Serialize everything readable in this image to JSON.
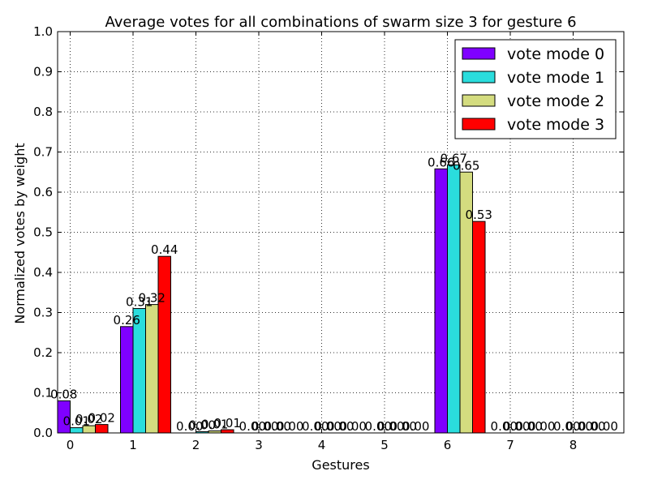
{
  "chart_data": {
    "type": "bar",
    "title": "Average votes for all combinations of swarm size 3 for gesture 6",
    "xlabel": "Gestures",
    "ylabel": "Normalized votes by weight",
    "categories": [
      "0",
      "1",
      "2",
      "3",
      "4",
      "5",
      "6",
      "7",
      "8"
    ],
    "ylim": [
      0,
      1.0
    ],
    "yticks": [
      "0.0",
      "0.1",
      "0.2",
      "0.3",
      "0.4",
      "0.5",
      "0.6",
      "0.7",
      "0.8",
      "0.9",
      "1.0"
    ],
    "grid": true,
    "legend_position": "top-right",
    "series": [
      {
        "name": "vote mode 0",
        "color": "#7f00ff",
        "values": [
          0.08,
          0.265,
          0.0,
          0.0,
          0.0,
          0.0,
          0.658,
          0.0,
          0.0
        ],
        "labels": [
          "0.08",
          "0.26",
          "0.00",
          "0.00",
          "0.00",
          "0.00",
          "0.66",
          "0.00",
          "0.00"
        ]
      },
      {
        "name": "vote mode 1",
        "color": "#2adddd",
        "values": [
          0.013,
          0.31,
          0.003,
          0.0,
          0.0,
          0.0,
          0.668,
          0.0,
          0.0
        ],
        "labels": [
          "0.01",
          "0.31",
          "0.00",
          "0.00",
          "0.00",
          "0.00",
          "0.67",
          "0.00",
          "0.00"
        ]
      },
      {
        "name": "vote mode 2",
        "color": "#d4dc7f",
        "values": [
          0.018,
          0.32,
          0.005,
          0.0,
          0.0,
          0.0,
          0.65,
          0.0,
          0.0
        ],
        "labels": [
          "0.02",
          "0.32",
          "0.01",
          "0.00",
          "0.00",
          "0.00",
          "0.65",
          "0.00",
          "0.00"
        ]
      },
      {
        "name": "vote mode 3",
        "color": "#ff0000",
        "values": [
          0.021,
          0.44,
          0.008,
          0.0,
          0.0,
          0.0,
          0.527,
          0.0,
          0.0
        ],
        "labels": [
          "0.02",
          "0.44",
          "0.01",
          "0.00",
          "0.00",
          "0.00",
          "0.53",
          "0.00",
          "0.00"
        ]
      }
    ]
  }
}
